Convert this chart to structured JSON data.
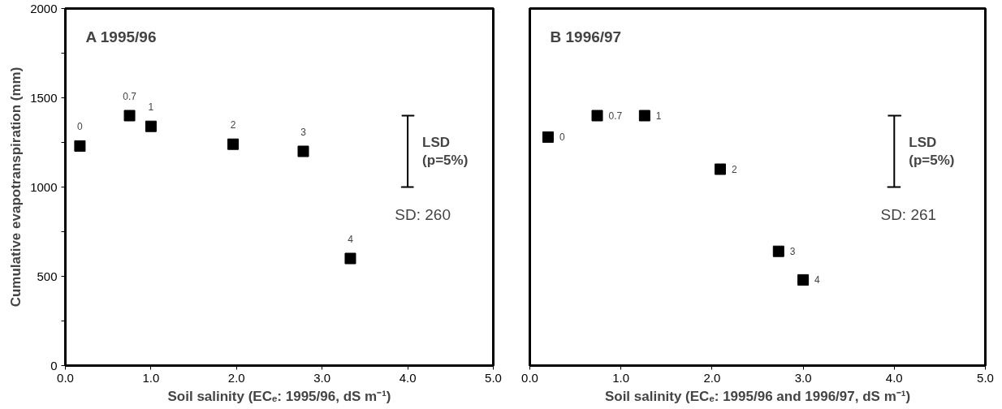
{
  "chart_data": [
    {
      "type": "scatter",
      "title": "A   1995/96",
      "xlabel": "Soil salinity (ECₑ: 1995/96, dS m⁻¹)",
      "ylabel": "Cumulative evapotranspiration (mm)",
      "xlim": [
        0,
        5
      ],
      "xticks": [
        {
          "value": 0,
          "label": "0.0"
        },
        {
          "value": 1,
          "label": "1.0"
        },
        {
          "value": 2,
          "label": "2.0"
        },
        {
          "value": 3,
          "label": "3.0"
        },
        {
          "value": 4,
          "label": "4.0"
        },
        {
          "value": 5,
          "label": "5.0"
        }
      ],
      "ylim": [
        0,
        2000
      ],
      "yticks": [
        0,
        {
          "value": 250,
          "label": null
        },
        500,
        {
          "value": 750,
          "label": null
        },
        1000,
        {
          "value": 1250,
          "label": null
        },
        1500,
        {
          "value": 1750,
          "label": null
        },
        2000
      ],
      "marker": "square",
      "grid": false,
      "series": [
        {
          "color": "#000000",
          "x": [
            0.17,
            0.75,
            1.0,
            1.96,
            2.78,
            3.33
          ],
          "values": [
            1230,
            1400,
            1340,
            1240,
            1200,
            600
          ]
        },
        {
          "type": "line",
          "color": "#000000",
          "marker": "none",
          "x": [
            3.93,
            4.07,
            4.0,
            4.0,
            3.93,
            4.07
          ],
          "values": [
            1400,
            1400,
            1400,
            1000,
            1000,
            1000
          ]
        }
      ],
      "annotations": [
        {
          "text": "0",
          "x": 0.17,
          "y": 1230
        },
        {
          "text": "0.7",
          "x": 0.75,
          "y": 1400
        },
        {
          "text": "1",
          "x": 1.0,
          "y": 1340
        },
        {
          "text": "2",
          "x": 1.96,
          "y": 1240
        },
        {
          "text": "3",
          "x": 2.78,
          "y": 1200
        },
        {
          "text": "4",
          "x": 3.33,
          "y": 600
        },
        {
          "text": "LSD\n(p=5%)",
          "x": 4.0,
          "y": 1200
        },
        "SD:  260"
      ]
    },
    {
      "type": "scatter",
      "title": "B   1996/97",
      "xlabel": "Soil salinity (ECₑ: 1995/96 and 1996/97, dS m⁻¹)",
      "xlim": [
        0,
        5
      ],
      "xticks": [
        {
          "value": 0,
          "label": "0.0"
        },
        {
          "value": 1,
          "label": "1.0"
        },
        {
          "value": 2,
          "label": "2.0"
        },
        {
          "value": 3,
          "label": "3.0"
        },
        {
          "value": 4,
          "label": "4.0"
        },
        {
          "value": 5,
          "label": "5.0"
        }
      ],
      "ylim": [
        0,
        2000
      ],
      "tick_labels": "x",
      "marker": "square",
      "grid": false,
      "series": [
        {
          "color": "#000000",
          "x": [
            0.2,
            0.74,
            1.26,
            2.09,
            2.73,
            3.0
          ],
          "values": [
            1280,
            1400,
            1400,
            1100,
            640,
            480
          ]
        },
        {
          "type": "line",
          "color": "#000000",
          "marker": "none",
          "x": [
            3.93,
            4.07,
            4.0,
            4.0,
            3.93,
            4.07
          ],
          "values": [
            1400,
            1400,
            1400,
            1000,
            1000,
            1000
          ]
        }
      ],
      "annotations": [
        {
          "text": "0",
          "x": 0.2,
          "y": 1280
        },
        {
          "text": "0.7",
          "x": 0.74,
          "y": 1400
        },
        {
          "text": "1",
          "x": 1.26,
          "y": 1400
        },
        {
          "text": "2",
          "x": 2.09,
          "y": 1100
        },
        {
          "text": "3",
          "x": 2.73,
          "y": 640
        },
        {
          "text": "4",
          "x": 3.0,
          "y": 480
        },
        {
          "text": "LSD\n(p=5%)",
          "x": 4.0,
          "y": 1200
        },
        "SD:  261"
      ]
    }
  ]
}
